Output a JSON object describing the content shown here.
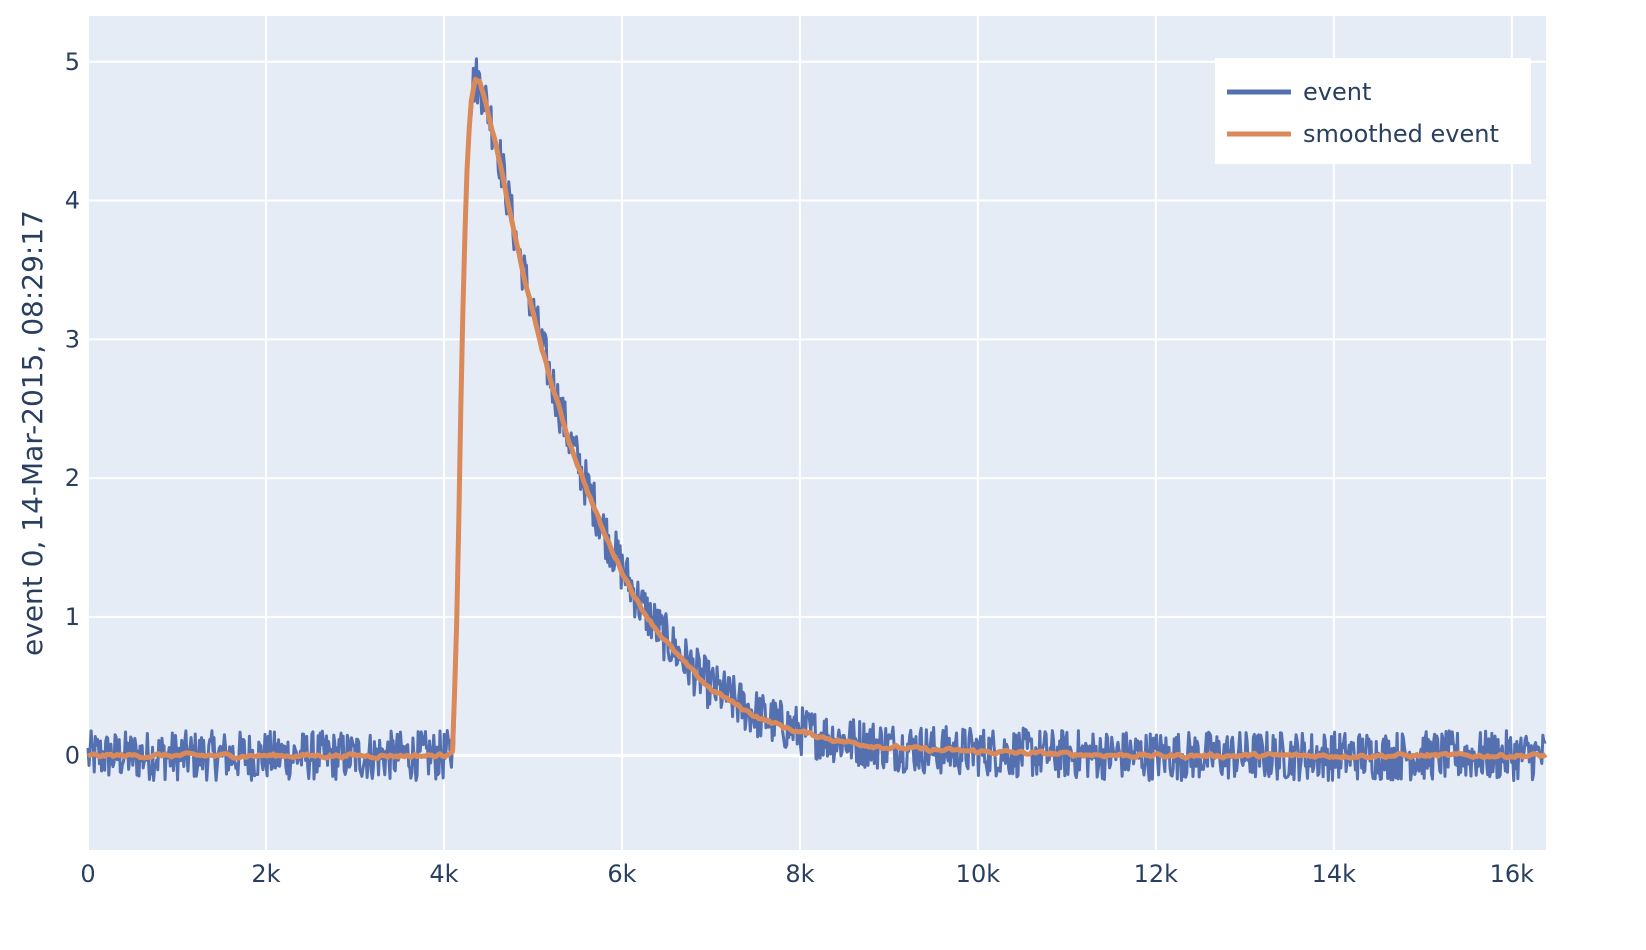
{
  "chart_data": {
    "type": "line",
    "title": "",
    "xlabel": "",
    "ylabel": "event 0, 14-Mar-2015, 08:29:17",
    "xlim": [
      0,
      16384
    ],
    "ylim": [
      -0.68,
      5.33
    ],
    "grid": true,
    "legend_position": "top-right",
    "x_ticks": [
      0,
      2000,
      4000,
      6000,
      8000,
      10000,
      12000,
      14000,
      16000
    ],
    "x_tick_labels": [
      "0",
      "2k",
      "4k",
      "6k",
      "8k",
      "10k",
      "12k",
      "14k",
      "16k"
    ],
    "y_ticks": [
      0,
      1,
      2,
      3,
      4,
      5
    ],
    "y_tick_labels": [
      "0",
      "1",
      "2",
      "3",
      "4",
      "5"
    ],
    "series": [
      {
        "name": "event",
        "color": "#5470b0",
        "noise_amplitude": 0.18,
        "x": [
          0,
          1000,
          2000,
          3000,
          4000,
          4100,
          4150,
          4200,
          4250,
          4300,
          4350,
          4400,
          4500,
          4600,
          4800,
          5000,
          5200,
          5400,
          5600,
          5800,
          6000,
          6200,
          6400,
          6600,
          6800,
          7000,
          7200,
          7400,
          7600,
          7800,
          8000,
          8500,
          9000,
          9500,
          10000,
          11000,
          12000,
          13000,
          14000,
          15000,
          16000,
          16384
        ],
        "y": [
          0,
          0,
          0,
          0,
          0,
          0.02,
          1.2,
          3.0,
          4.2,
          4.75,
          4.88,
          4.85,
          4.65,
          4.4,
          3.75,
          3.2,
          2.72,
          2.3,
          1.95,
          1.62,
          1.35,
          1.1,
          0.92,
          0.76,
          0.62,
          0.5,
          0.42,
          0.34,
          0.27,
          0.22,
          0.18,
          0.11,
          0.07,
          0.04,
          0.03,
          0.01,
          0.0,
          0.0,
          0.0,
          0.0,
          0.0,
          0.0
        ]
      },
      {
        "name": "smoothed event",
        "color": "#d9895a",
        "noise_amplitude": 0.03,
        "x": [
          0,
          1000,
          2000,
          3000,
          4000,
          4100,
          4150,
          4200,
          4250,
          4300,
          4350,
          4400,
          4500,
          4600,
          4800,
          5000,
          5200,
          5400,
          5600,
          5800,
          6000,
          6200,
          6400,
          6600,
          6800,
          7000,
          7200,
          7400,
          7600,
          7800,
          8000,
          8500,
          9000,
          9500,
          10000,
          11000,
          12000,
          13000,
          14000,
          15000,
          16000,
          16384
        ],
        "y": [
          0,
          0,
          0,
          0,
          0,
          0.05,
          1.1,
          2.9,
          4.1,
          4.7,
          4.86,
          4.85,
          4.62,
          4.36,
          3.73,
          3.18,
          2.7,
          2.28,
          1.93,
          1.6,
          1.33,
          1.08,
          0.9,
          0.74,
          0.6,
          0.48,
          0.4,
          0.32,
          0.26,
          0.21,
          0.17,
          0.1,
          0.06,
          0.04,
          0.03,
          0.01,
          0.0,
          0.0,
          0.0,
          0.0,
          0.0,
          0.0
        ]
      }
    ]
  },
  "colors": {
    "plot_background": "#e5ecf6",
    "grid": "#ffffff",
    "text": "#2a3f5f",
    "legend_background": "#ffffff"
  }
}
